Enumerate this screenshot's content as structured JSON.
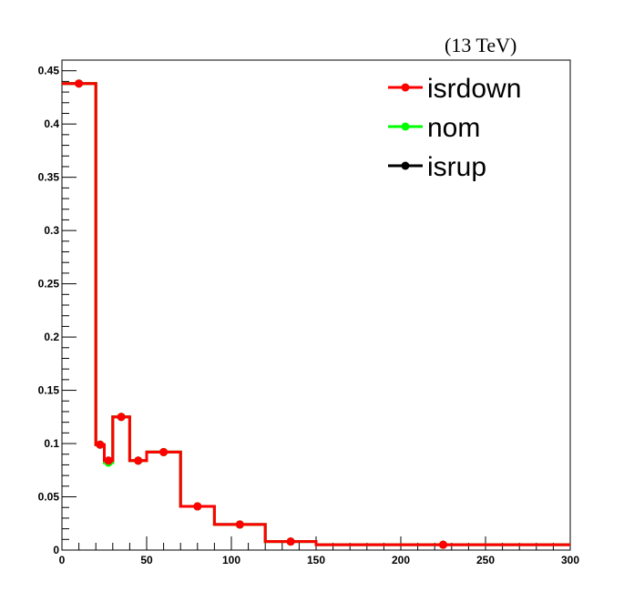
{
  "chart_data": {
    "type": "line",
    "title": "",
    "energy_label": "(13 TeV)",
    "xlabel": "",
    "ylabel": "",
    "xlim": [
      0,
      300
    ],
    "ylim": [
      0,
      0.46
    ],
    "grid": false,
    "legend_position": "top-right",
    "x_ticks": [
      0,
      50,
      100,
      150,
      200,
      250,
      300
    ],
    "x_tick_labels": [
      "0",
      "50",
      "100",
      "150",
      "200",
      "250",
      "300"
    ],
    "y_ticks": [
      0,
      0.05,
      0.1,
      0.15,
      0.2,
      0.25,
      0.3,
      0.35,
      0.4,
      0.45
    ],
    "y_tick_labels": [
      "0",
      "0.05",
      "0.1",
      "0.15",
      "0.2",
      "0.25",
      "0.3",
      "0.35",
      "0.4",
      "0.45"
    ],
    "bin_edges": [
      0,
      20,
      25,
      30,
      40,
      50,
      70,
      90,
      120,
      150,
      300
    ],
    "series": [
      {
        "name": "isrup",
        "color": "#000000",
        "values": [
          0.438,
          0.099,
          0.084,
          0.125,
          0.084,
          0.092,
          0.041,
          0.024,
          0.008,
          0.005
        ]
      },
      {
        "name": "nom",
        "color": "#00ff00",
        "values": [
          0.438,
          0.099,
          0.082,
          0.125,
          0.084,
          0.092,
          0.041,
          0.024,
          0.008,
          0.005
        ]
      },
      {
        "name": "isrdown",
        "color": "#ff0000",
        "values": [
          0.438,
          0.099,
          0.084,
          0.125,
          0.084,
          0.092,
          0.041,
          0.024,
          0.008,
          0.005
        ]
      }
    ],
    "legend_order": [
      "isrdown",
      "nom",
      "isrup"
    ]
  }
}
